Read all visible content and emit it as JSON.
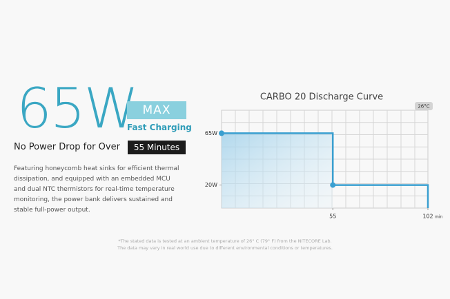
{
  "headline": {
    "power": "65W",
    "max": "MAX",
    "fast": "Fast Charging",
    "nodrop": "No Power Drop for Over",
    "minutes": "55 Minutes"
  },
  "description": [
    "Featuring honeycomb heat sinks for efficient thermal",
    "dissipation, and equipped with an embedded MCU",
    "and dual NTC thermistors for real-time temperature",
    "monitoring, the power bank delivers sustained and",
    "stable full-power output."
  ],
  "footnote": [
    "*The stated data is tested at an ambient temperature of 26° C (79° F) from the NITECORE Lab.",
    "The data may vary in real world use due to different environmental conditions or temperatures."
  ],
  "chart_data": {
    "type": "line",
    "title": "CARBO 20 Discharge Curve",
    "badge": "26°C",
    "x": [
      0,
      55,
      55,
      102,
      102
    ],
    "series": [
      {
        "color": "#3a9fd0",
        "values": [
          65,
          65,
          20,
          20,
          0
        ]
      }
    ],
    "xlim": [
      0,
      102
    ],
    "xticks": [
      55,
      102
    ],
    "x_unit": "min",
    "ylim": [
      0,
      85
    ],
    "yticks": [
      {
        "value": 65,
        "label": "65W"
      },
      {
        "value": 20,
        "label": "20W"
      }
    ],
    "grid": true
  }
}
